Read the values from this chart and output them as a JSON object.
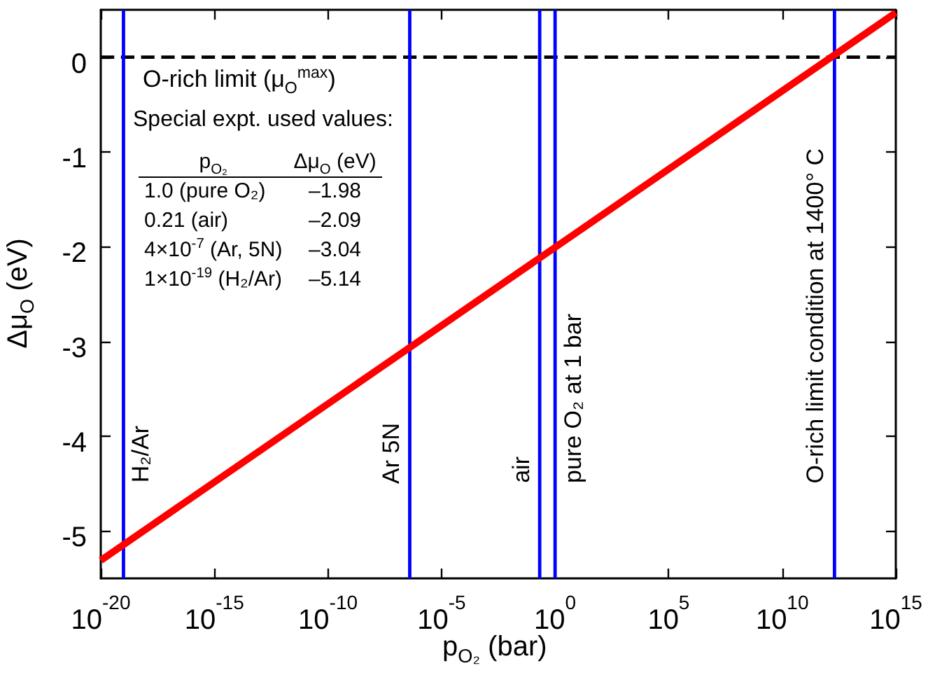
{
  "chart_data": {
    "type": "line",
    "xlabel": "p$_{O₂}$ (bar)",
    "ylabel": "Δμ$_{O}$ (eV)",
    "log": "x",
    "marker": "none",
    "line_style": "solid",
    "grid": false,
    "xlim": [
      1e-20,
      1000000000000000.0
    ],
    "xticks": [
      {
        "value": 1e-20,
        "label": "10$^{-20}$"
      },
      {
        "value": 1e-15,
        "label": "10$^{-15}$"
      },
      {
        "value": 1e-10,
        "label": "10$^{-10}$"
      },
      {
        "value": 1e-05,
        "label": "10$^{-5}$"
      },
      {
        "value": 1,
        "label": "10$^{0}$"
      },
      {
        "value": 100000.0,
        "label": "10$^{5}$"
      },
      {
        "value": 10000000000.0,
        "label": "10$^{10}$"
      },
      {
        "value": 1000000000000000.0,
        "label": "10$^{15}$"
      }
    ],
    "ylim": [
      -5.5,
      0.5
    ],
    "yticks": [
      -5,
      -4,
      -3,
      -2,
      -1,
      0
    ],
    "series": [
      {
        "color": "#ff0000",
        "x": [
          1e-20,
          1000000000000000.0
        ],
        "values": [
          -5.31,
          0.47
        ]
      }
    ],
    "ref_lines": [
      {
        "axis": "y",
        "value": 0,
        "label": "O-rich limit (μ$_{O}$$^{max}$)",
        "color": "#000000",
        "line_style": "dashed"
      },
      {
        "axis": "x",
        "value": 1e-19,
        "label": "H₂/Ar",
        "color": "#0000ff"
      },
      {
        "axis": "x",
        "value": 4e-07,
        "label": "Ar 5N",
        "color": "#0000ff"
      },
      {
        "axis": "x",
        "value": 0.21,
        "label": "air",
        "color": "#0000ff"
      },
      {
        "axis": "x",
        "value": 1,
        "label": "pure O₂ at 1 bar",
        "color": "#0000ff"
      },
      {
        "axis": "x",
        "value": 2000000000000.0,
        "label": "O-rich limit condition at 1400° C",
        "color": "#0000ff"
      }
    ],
    "annotations": [
      "Special expt. used values:",
      "p$_{O₂}$",
      "Δμ$_{O}$ (eV)",
      "1.0 (pure O₂)",
      "–1.98",
      "0.21 (air)",
      "–2.09",
      "4×10$^{-7}$ (Ar, 5N)",
      "–3.04",
      "1×10$^{-19}$ (H₂/Ar)",
      "–5.14"
    ]
  }
}
